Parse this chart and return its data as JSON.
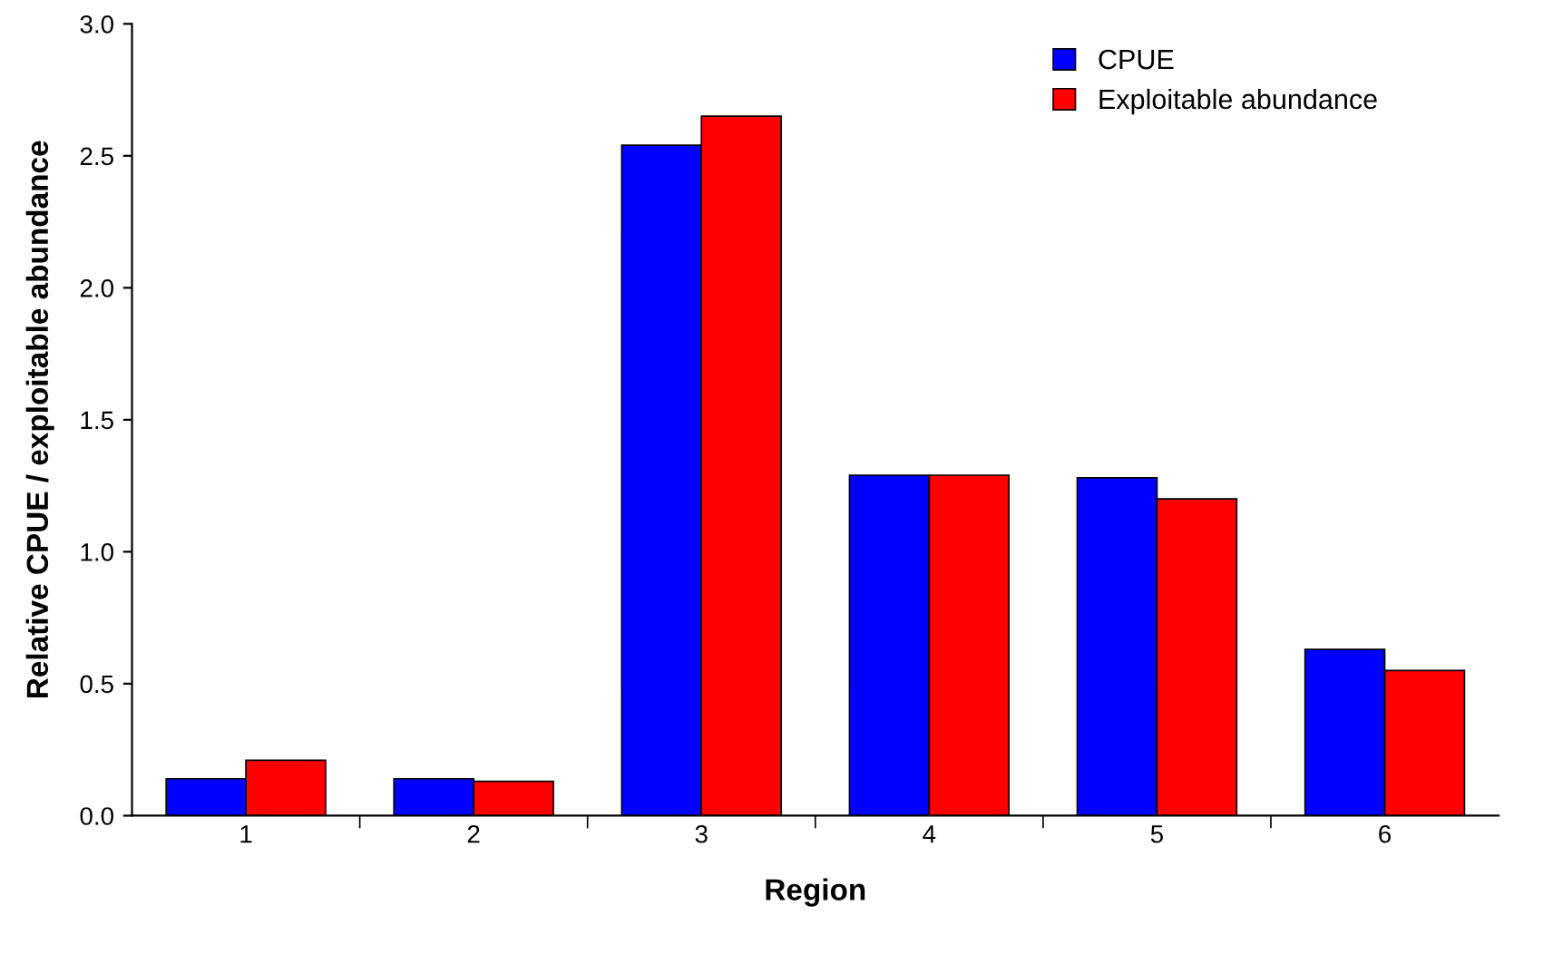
{
  "chart_data": {
    "type": "bar",
    "xlabel": "Region",
    "ylabel": "Relative CPUE / exploitable abundance",
    "categories": [
      "1",
      "2",
      "3",
      "4",
      "5",
      "6"
    ],
    "series": [
      {
        "name": "CPUE",
        "color": "#0000ff",
        "values": [
          0.14,
          0.14,
          2.54,
          1.29,
          1.28,
          0.63
        ]
      },
      {
        "name": "Exploitable abundance",
        "color": "#ff0000",
        "values": [
          0.21,
          0.13,
          2.65,
          1.29,
          1.2,
          0.55
        ]
      }
    ],
    "ylim": [
      0,
      3
    ],
    "yticks": [
      {
        "value": 0,
        "label": "0.0"
      },
      {
        "value": 0.5,
        "label": "0.5"
      },
      {
        "value": 1,
        "label": "1.0"
      },
      {
        "value": 1.5,
        "label": "1.5"
      },
      {
        "value": 2,
        "label": "2.0"
      },
      {
        "value": 2.5,
        "label": "2.5"
      },
      {
        "value": 3,
        "label": "3.0"
      }
    ],
    "grid": false,
    "legend": "top right"
  }
}
